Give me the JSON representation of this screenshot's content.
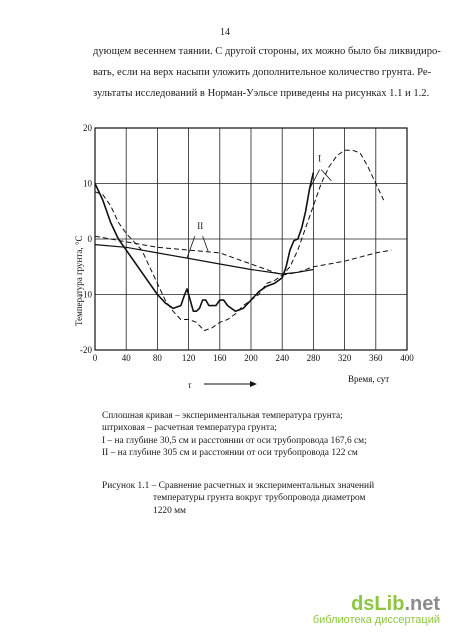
{
  "page_number": "14",
  "body_text": [
    "дующем весеннем таянии. С другой стороны, их можно было бы ликвидиро-",
    "вать, если на верх насыпи уложить дополнительное количество грунта. Ре-",
    "зультаты исследований в Норман-Уэльсе приведены на рисунках 1.1 и 1.2."
  ],
  "chart_data": {
    "type": "line",
    "xlabel": "Время, сут",
    "ylabel": "Температура грунта, °C",
    "time_symbol": "τ",
    "xlim": [
      0,
      400
    ],
    "ylim": [
      -20,
      20
    ],
    "x_ticks": [
      "0",
      "40",
      "80",
      "120",
      "160",
      "200",
      "240",
      "280",
      "320",
      "360",
      "400"
    ],
    "y_ticks": [
      "20",
      "10",
      "0",
      "-10",
      "-20"
    ],
    "grid": true,
    "curve_labels": [
      "I",
      "II"
    ],
    "series": [
      {
        "style": "solid",
        "curve": "I",
        "x": [
          0,
          10,
          20,
          30,
          40,
          50,
          60,
          70,
          80,
          90,
          100,
          110,
          115,
          118,
          122,
          126,
          130,
          134,
          138,
          142,
          146,
          150,
          155,
          160,
          165,
          170,
          180,
          190,
          200,
          210,
          220,
          230,
          240,
          245,
          250,
          255,
          260,
          265,
          270,
          275,
          280
        ],
        "y": [
          10,
          7,
          3,
          0,
          -2,
          -4,
          -6,
          -8,
          -10,
          -11.5,
          -12.5,
          -12,
          -10,
          -9,
          -11,
          -13,
          -13,
          -12.5,
          -11,
          -11,
          -12,
          -12,
          -12,
          -11,
          -11,
          -12,
          -13,
          -12.5,
          -11,
          -9.5,
          -8.5,
          -8,
          -7,
          -5,
          -2,
          -0.3,
          0,
          2,
          5,
          9,
          12
        ]
      },
      {
        "style": "dashed",
        "curve": "I",
        "x": [
          0,
          10,
          20,
          30,
          40,
          50,
          60,
          70,
          80,
          90,
          100,
          110,
          120,
          130,
          140,
          150,
          160,
          170,
          180,
          190,
          200,
          210,
          220,
          230,
          240,
          250,
          260,
          270,
          280,
          290,
          300,
          310,
          320,
          330,
          340,
          350,
          360,
          370
        ],
        "y": [
          8.5,
          8,
          6,
          3,
          1,
          -0.5,
          -2,
          -5,
          -8,
          -11,
          -13,
          -14.5,
          -14.5,
          -15,
          -16.5,
          -16,
          -15,
          -14.5,
          -13.5,
          -12,
          -11,
          -10,
          -8,
          -7.5,
          -6.5,
          -5,
          -2,
          2,
          6,
          10,
          13,
          15,
          16,
          16,
          15.5,
          13,
          10,
          7
        ]
      },
      {
        "style": "solid",
        "curve": "II",
        "x": [
          0,
          40,
          80,
          120,
          160,
          200,
          240,
          260,
          280
        ],
        "y": [
          -1,
          -1.5,
          -2.5,
          -3.5,
          -4.5,
          -5.5,
          -6.3,
          -6,
          -5.5
        ]
      },
      {
        "style": "dashed",
        "curve": "II",
        "x": [
          0,
          40,
          80,
          120,
          160,
          200,
          240,
          260,
          280,
          320,
          360,
          380
        ],
        "y": [
          0.5,
          -0.5,
          -1.5,
          -2,
          -2.5,
          -4.5,
          -6.5,
          -6,
          -5,
          -4,
          -2.5,
          -2
        ]
      }
    ]
  },
  "legend_text": [
    "Сплошная кривая – экспериментальная температура грунта;",
    "штриховая – расчетная температура грунта;",
    "I – на глубине 30,5 см и расстоянии от оси трубопровода 167,6 см;",
    "II – на глубине 305 см и расстоянии от оси трубопровода 122 см"
  ],
  "figure_caption": [
    "Рисунок 1.1 – Сравнение расчетных и экспериментальных значений",
    "температуры грунта вокруг трубопровода диаметром",
    "1220 мм"
  ],
  "watermark": {
    "logo_main": "dsLib",
    "logo_suffix": ".net",
    "subtitle": "библиотека диссертаций",
    "logo_color": "#8dc63f",
    "suffix_color": "#8b8b8b"
  }
}
